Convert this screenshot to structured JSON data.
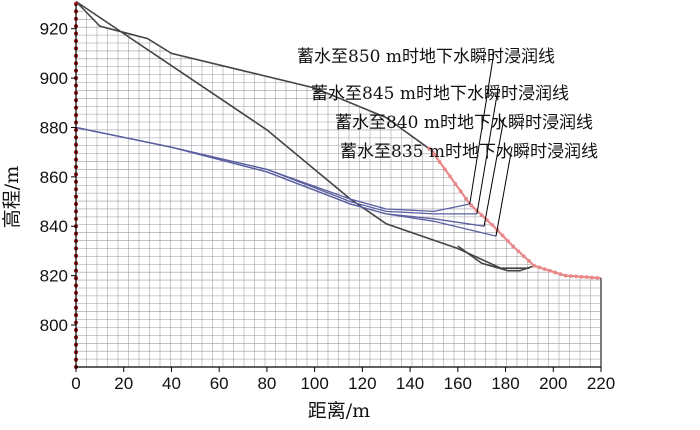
{
  "chart_data": {
    "type": "line",
    "xlabel": "距离/m",
    "ylabel": "高程/m",
    "xlim": [
      0,
      220
    ],
    "ylim": [
      783,
      930
    ],
    "x_ticks": [
      "0",
      "20",
      "40",
      "60",
      "80",
      "100",
      "120",
      "140",
      "160",
      "180",
      "200",
      "220"
    ],
    "y_ticks": [
      "800",
      "820",
      "840",
      "860",
      "880",
      "900",
      "920"
    ],
    "grid": "finite-element mesh",
    "series": [
      {
        "name": "蓄水至850 m时地下水瞬时浸润线",
        "x": [
          0,
          40,
          80,
          115,
          130,
          150,
          165
        ],
        "y": [
          880,
          872,
          863,
          851,
          847,
          846,
          849
        ]
      },
      {
        "name": "蓄水至845 m时地下水瞬时浸润线",
        "x": [
          0,
          40,
          80,
          115,
          130,
          150,
          168
        ],
        "y": [
          880,
          872,
          863,
          850,
          846,
          845,
          845
        ]
      },
      {
        "name": "蓄水至840 m时地下水瞬时浸润线",
        "x": [
          0,
          40,
          80,
          115,
          130,
          150,
          171
        ],
        "y": [
          880,
          872,
          862,
          849,
          845,
          843,
          840
        ]
      },
      {
        "name": "蓄水至835 m时地下水瞬时浸润线",
        "x": [
          0,
          40,
          80,
          115,
          130,
          150,
          176
        ],
        "y": [
          880,
          872,
          862,
          849,
          845,
          842,
          836
        ]
      }
    ],
    "boundaries": {
      "ground_surface": {
        "x": [
          0,
          10,
          30,
          40,
          70,
          100,
          130,
          150
        ],
        "y": [
          931,
          921,
          916,
          910,
          903,
          896,
          884,
          870
        ]
      },
      "slip_surface": {
        "x": [
          0,
          40,
          80,
          115,
          130,
          160,
          178,
          190
        ],
        "y": [
          931,
          905,
          879,
          851,
          841,
          831,
          823,
          823
        ]
      },
      "bedrock_line": {
        "x": [
          160,
          170,
          181,
          186,
          192
        ],
        "y": [
          832,
          825,
          822,
          822,
          824
        ]
      },
      "reservoir_boundary": {
        "x": [
          148,
          165,
          175,
          183,
          192,
          205,
          220
        ],
        "y": [
          872,
          849,
          840,
          832,
          824,
          820,
          819
        ]
      }
    },
    "annotations": [
      {
        "text": "蓄水至850 m时地下水瞬时浸润线",
        "points_to": [
          165,
          849
        ]
      },
      {
        "text": "蓄水至845 m时地下水瞬时浸润线",
        "points_to": [
          168,
          845
        ]
      },
      {
        "text": "蓄水至840 m时地下水瞬时浸润线",
        "points_to": [
          171,
          840
        ]
      },
      {
        "text": "蓄水至835 m时地下水瞬时浸润线",
        "points_to": [
          176,
          836
        ]
      }
    ],
    "colors": {
      "mesh": "#9a9aa8",
      "boundary": "#444444",
      "seepage": "#5a5fa0",
      "reservoir": "#e98a8a",
      "fixed_node": "#a01818"
    }
  }
}
